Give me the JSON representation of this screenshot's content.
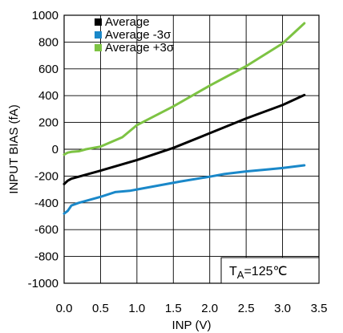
{
  "chart_data": {
    "type": "line",
    "title": "",
    "xlabel": "INP (V)",
    "ylabel": "INPUT BIAS (fA)",
    "xlim": [
      0.0,
      3.5
    ],
    "ylim": [
      -1000,
      1000
    ],
    "xticks": [
      "0.0",
      "0.5",
      "1.0",
      "1.5",
      "2.0",
      "2.5",
      "3.0",
      "3.5"
    ],
    "yticks": [
      "1000",
      "800",
      "600",
      "400",
      "200",
      "0",
      "-200",
      "-400",
      "-600",
      "-800",
      "-1000"
    ],
    "grid": true,
    "legend_position": "top-left",
    "annotation": {
      "prefix": "T",
      "subscript": "A",
      "suffix": "=125℃"
    },
    "series": [
      {
        "name": "Average",
        "color": "#000000",
        "points": [
          [
            0.0,
            -260
          ],
          [
            0.05,
            -235
          ],
          [
            0.1,
            -220
          ],
          [
            0.2,
            -205
          ],
          [
            0.5,
            -160
          ],
          [
            1.0,
            -80
          ],
          [
            1.5,
            10
          ],
          [
            2.0,
            120
          ],
          [
            2.5,
            230
          ],
          [
            3.0,
            330
          ],
          [
            3.3,
            405
          ]
        ]
      },
      {
        "name": "Average -3σ",
        "color": "#1a88c9",
        "points": [
          [
            0.0,
            -480
          ],
          [
            0.05,
            -460
          ],
          [
            0.1,
            -420
          ],
          [
            0.2,
            -400
          ],
          [
            0.3,
            -385
          ],
          [
            0.5,
            -355
          ],
          [
            0.7,
            -320
          ],
          [
            0.9,
            -310
          ],
          [
            1.0,
            -300
          ],
          [
            1.3,
            -270
          ],
          [
            1.6,
            -240
          ],
          [
            2.0,
            -205
          ],
          [
            2.2,
            -185
          ],
          [
            2.5,
            -165
          ],
          [
            2.8,
            -150
          ],
          [
            3.0,
            -140
          ],
          [
            3.3,
            -120
          ]
        ]
      },
      {
        "name": "Average +3σ",
        "color": "#7dc343",
        "points": [
          [
            0.0,
            -40
          ],
          [
            0.05,
            -25
          ],
          [
            0.1,
            -20
          ],
          [
            0.2,
            -15
          ],
          [
            0.3,
            0
          ],
          [
            0.5,
            20
          ],
          [
            0.8,
            90
          ],
          [
            1.0,
            180
          ],
          [
            1.5,
            320
          ],
          [
            2.0,
            475
          ],
          [
            2.5,
            620
          ],
          [
            3.0,
            790
          ],
          [
            3.3,
            940
          ]
        ]
      }
    ]
  }
}
